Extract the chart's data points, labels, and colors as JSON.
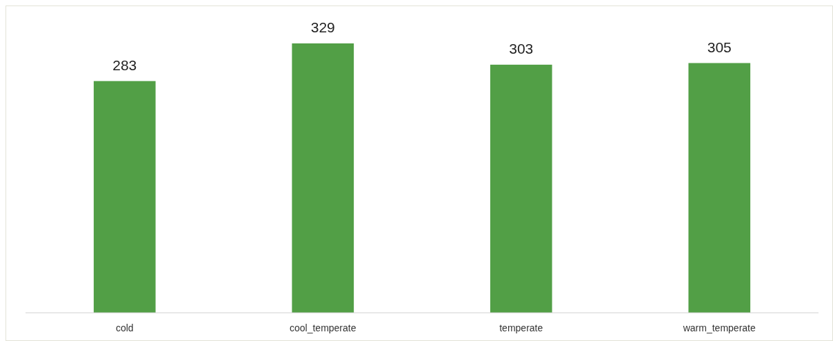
{
  "chart_data": {
    "type": "bar",
    "categories": [
      "cold",
      "cool_temperate",
      "temperate",
      "warm_temperate"
    ],
    "values": [
      283,
      329,
      303,
      305
    ],
    "color": "#529f46",
    "data_labels": true
  }
}
